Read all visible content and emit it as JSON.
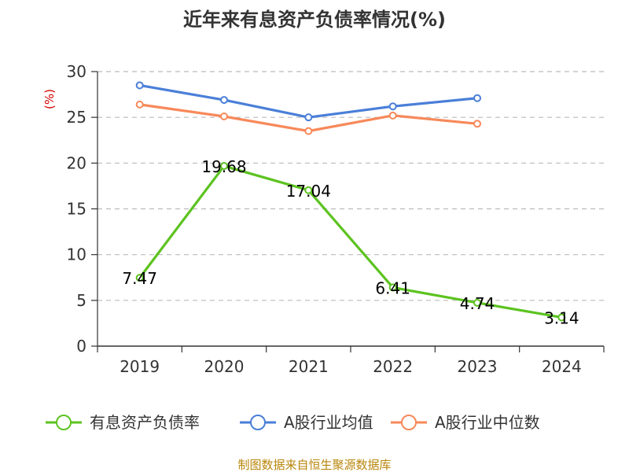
{
  "chart_data": {
    "type": "line",
    "title": "近年来有息资产负债率情况(%)",
    "y_unit": "(%)",
    "categories": [
      "2019",
      "2020",
      "2021",
      "2022",
      "2023",
      "2024"
    ],
    "ylim": [
      0,
      30
    ],
    "yticks": [
      0,
      5,
      10,
      15,
      20,
      25,
      30
    ],
    "grid": true,
    "legend_position": "bottom",
    "series": [
      {
        "name": "有息资产负债率",
        "color": "#5cc320",
        "values": [
          7.47,
          19.68,
          17.04,
          6.41,
          4.74,
          3.14
        ],
        "labels": [
          "7.47",
          "19.68",
          "17.04",
          "6.41",
          "4.74",
          "3.14"
        ]
      },
      {
        "name": "A股行业均值",
        "color": "#4a7fd8",
        "values": [
          28.5,
          26.9,
          25.0,
          26.2,
          27.1,
          null
        ]
      },
      {
        "name": "A股行业中位数",
        "color": "#f7895a",
        "values": [
          26.4,
          25.1,
          23.5,
          25.2,
          24.3,
          null
        ]
      }
    ],
    "source": "制图数据来自恒生聚源数据库"
  }
}
